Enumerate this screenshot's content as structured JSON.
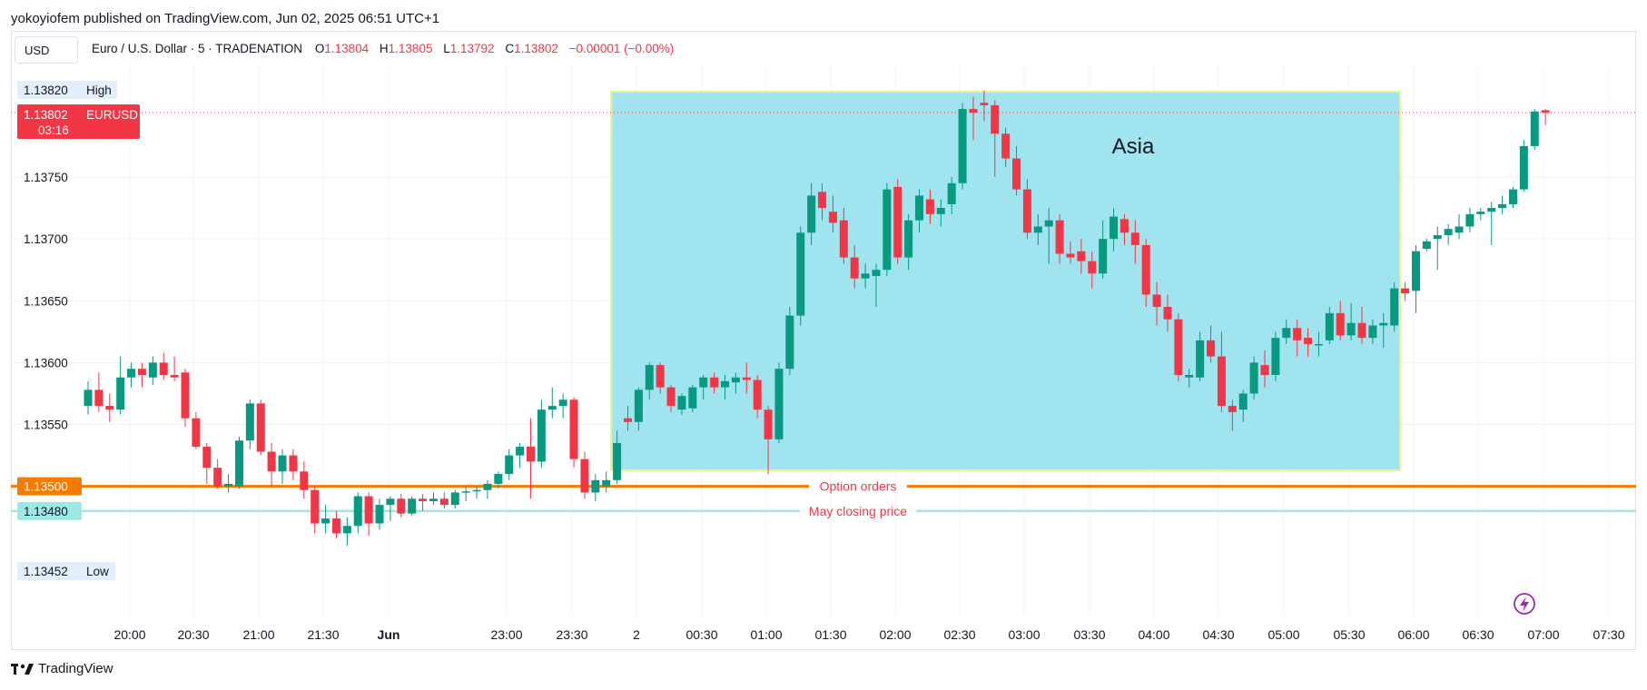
{
  "header": {
    "published": "yokoyiofem published on TradingView.com, Jun 02, 2025 06:51 UTC+1",
    "currency_button": "USD",
    "symbol": "Euro / U.S. Dollar · 5 · TRADENATION",
    "ohlc": {
      "o_label": "O",
      "o": "1.13804",
      "h_label": "H",
      "h": "1.13805",
      "l_label": "L",
      "l": "1.13792",
      "c_label": "C",
      "c": "1.13802",
      "change": "−0.00001 (−0.00%)"
    }
  },
  "footer": {
    "brand": "TradingView"
  },
  "chart_data": {
    "type": "candlestick",
    "y_range": [
      1.1341,
      1.1382
    ],
    "y_ticks": [
      "1.13750",
      "1.13700",
      "1.13650",
      "1.13600",
      "1.13550"
    ],
    "x_ticks": [
      "20:00",
      "20:30",
      "21:00",
      "21:30",
      "Jun",
      "23:00",
      "23:30",
      "2",
      "00:30",
      "01:00",
      "01:30",
      "02:00",
      "02:30",
      "03:00",
      "03:30",
      "04:00",
      "04:30",
      "05:00",
      "05:30",
      "06:00",
      "06:30",
      "07:00",
      "07:30"
    ],
    "price_labels": {
      "high": {
        "value": "1.13820",
        "tag": "High"
      },
      "low": {
        "value": "1.13452",
        "tag": "Low"
      },
      "last": {
        "value": "1.13802",
        "symbol": "EURUSD",
        "countdown": "03:16"
      }
    },
    "levels": [
      {
        "name": "Option orders",
        "value": "1.13500",
        "price": 1.135,
        "color": "#f57c00"
      },
      {
        "name": "May closing price",
        "value": "1.13480",
        "price": 1.1348,
        "color": "#9de8e4"
      }
    ],
    "annotations": [
      {
        "type": "rectangle",
        "label": "Asia",
        "start_index": 49,
        "end_index": 121,
        "price_top": 1.13819,
        "price_bottom": 1.13513,
        "fill": "#9fe4ef",
        "border": "#f0ef8f"
      }
    ],
    "colors": {
      "up": "#089981",
      "down": "#f23645",
      "grid": "#f0f3fa"
    },
    "candles": [
      [
        1.13565,
        1.13585,
        1.13558,
        1.13578
      ],
      [
        1.13578,
        1.13592,
        1.1356,
        1.13565
      ],
      [
        1.13565,
        1.13575,
        1.13552,
        1.13562
      ],
      [
        1.13562,
        1.13605,
        1.13558,
        1.13588
      ],
      [
        1.13588,
        1.136,
        1.1358,
        1.13595
      ],
      [
        1.13595,
        1.136,
        1.1358,
        1.1359
      ],
      [
        1.13588,
        1.13605,
        1.13582,
        1.136
      ],
      [
        1.136,
        1.13608,
        1.13586,
        1.1359
      ],
      [
        1.1359,
        1.13605,
        1.13585,
        1.13588
      ],
      [
        1.13592,
        1.13595,
        1.13548,
        1.13555
      ],
      [
        1.13555,
        1.1356,
        1.1353,
        1.13532
      ],
      [
        1.13532,
        1.13535,
        1.13502,
        1.13515
      ],
      [
        1.13515,
        1.13522,
        1.13498,
        1.135
      ],
      [
        1.135,
        1.1351,
        1.13495,
        1.13502
      ],
      [
        1.135,
        1.1354,
        1.13498,
        1.13537
      ],
      [
        1.13537,
        1.1357,
        1.1353,
        1.13567
      ],
      [
        1.13567,
        1.1357,
        1.13525,
        1.13528
      ],
      [
        1.13528,
        1.13535,
        1.135,
        1.13512
      ],
      [
        1.13512,
        1.1353,
        1.13502,
        1.13525
      ],
      [
        1.13525,
        1.1353,
        1.13505,
        1.13512
      ],
      [
        1.13512,
        1.1352,
        1.1349,
        1.13497
      ],
      [
        1.13497,
        1.135,
        1.13462,
        1.1347
      ],
      [
        1.1347,
        1.13485,
        1.13462,
        1.13474
      ],
      [
        1.13474,
        1.1348,
        1.13458,
        1.13462
      ],
      [
        1.13462,
        1.13475,
        1.13452,
        1.13468
      ],
      [
        1.13468,
        1.13495,
        1.13462,
        1.13492
      ],
      [
        1.13492,
        1.13495,
        1.1346,
        1.1347
      ],
      [
        1.1347,
        1.1349,
        1.13465,
        1.13485
      ],
      [
        1.13485,
        1.13492,
        1.13472,
        1.1349
      ],
      [
        1.1349,
        1.13494,
        1.13475,
        1.13478
      ],
      [
        1.13478,
        1.13492,
        1.13476,
        1.1349
      ],
      [
        1.1349,
        1.13494,
        1.1348,
        1.13488
      ],
      [
        1.13488,
        1.13495,
        1.13485,
        1.1349
      ],
      [
        1.1349,
        1.13495,
        1.13482,
        1.13485
      ],
      [
        1.13485,
        1.13497,
        1.13482,
        1.13495
      ],
      [
        1.13495,
        1.135,
        1.13488,
        1.13496
      ],
      [
        1.13496,
        1.135,
        1.1349,
        1.13497
      ],
      [
        1.13497,
        1.13505,
        1.1349,
        1.13502
      ],
      [
        1.13502,
        1.13512,
        1.13498,
        1.1351
      ],
      [
        1.1351,
        1.1353,
        1.13505,
        1.13525
      ],
      [
        1.13525,
        1.13535,
        1.13515,
        1.13532
      ],
      [
        1.13532,
        1.13555,
        1.1349,
        1.1352
      ],
      [
        1.1352,
        1.1357,
        1.13515,
        1.13562
      ],
      [
        1.13562,
        1.1358,
        1.13555,
        1.13565
      ],
      [
        1.13565,
        1.13575,
        1.13555,
        1.1357
      ],
      [
        1.1357,
        1.13572,
        1.13515,
        1.13522
      ],
      [
        1.13522,
        1.13528,
        1.1349,
        1.13495
      ],
      [
        1.13495,
        1.1351,
        1.13488,
        1.13505
      ],
      [
        1.135,
        1.13512,
        1.13495,
        1.13505
      ],
      [
        1.13505,
        1.13545,
        1.13502,
        1.13535
      ],
      [
        1.13555,
        1.13565,
        1.13545,
        1.13552
      ],
      [
        1.13552,
        1.1358,
        1.13545,
        1.13578
      ],
      [
        1.13578,
        1.136,
        1.1357,
        1.13598
      ],
      [
        1.13598,
        1.136,
        1.13575,
        1.1358
      ],
      [
        1.1358,
        1.13582,
        1.1356,
        1.13565
      ],
      [
        1.13562,
        1.13575,
        1.13558,
        1.13573
      ],
      [
        1.13563,
        1.13582,
        1.1356,
        1.1358
      ],
      [
        1.1358,
        1.1359,
        1.1357,
        1.13588
      ],
      [
        1.13588,
        1.13592,
        1.13575,
        1.1358
      ],
      [
        1.1358,
        1.1359,
        1.1357,
        1.13585
      ],
      [
        1.13584,
        1.13592,
        1.13575,
        1.13588
      ],
      [
        1.13588,
        1.136,
        1.13575,
        1.13586
      ],
      [
        1.13586,
        1.1359,
        1.13555,
        1.13562
      ],
      [
        1.13562,
        1.13565,
        1.1351,
        1.13538
      ],
      [
        1.13538,
        1.136,
        1.13535,
        1.13595
      ],
      [
        1.13595,
        1.13645,
        1.1359,
        1.13638
      ],
      [
        1.13638,
        1.1371,
        1.1363,
        1.13705
      ],
      [
        1.13705,
        1.13745,
        1.13695,
        1.13735
      ],
      [
        1.13738,
        1.13745,
        1.13715,
        1.13725
      ],
      [
        1.13722,
        1.13735,
        1.13705,
        1.13713
      ],
      [
        1.13715,
        1.13725,
        1.1368,
        1.13685
      ],
      [
        1.13685,
        1.13695,
        1.1366,
        1.13668
      ],
      [
        1.13668,
        1.1368,
        1.1366,
        1.13672
      ],
      [
        1.1367,
        1.1368,
        1.13645,
        1.13675
      ],
      [
        1.13675,
        1.13745,
        1.1367,
        1.1374
      ],
      [
        1.13742,
        1.13748,
        1.1368,
        1.13685
      ],
      [
        1.13685,
        1.1372,
        1.13675,
        1.13715
      ],
      [
        1.13715,
        1.1374,
        1.13705,
        1.13735
      ],
      [
        1.13732,
        1.1374,
        1.13712,
        1.1372
      ],
      [
        1.1372,
        1.13732,
        1.1371,
        1.13725
      ],
      [
        1.13728,
        1.1375,
        1.1372,
        1.13745
      ],
      [
        1.13745,
        1.1381,
        1.1374,
        1.13805
      ],
      [
        1.13805,
        1.13815,
        1.1378,
        1.13802
      ],
      [
        1.1381,
        1.1382,
        1.13795,
        1.13808
      ],
      [
        1.13808,
        1.13812,
        1.1375,
        1.13785
      ],
      [
        1.13785,
        1.1379,
        1.13758,
        1.13765
      ],
      [
        1.13765,
        1.13775,
        1.13735,
        1.1374
      ],
      [
        1.1374,
        1.13748,
        1.137,
        1.13705
      ],
      [
        1.13705,
        1.1372,
        1.13695,
        1.1371
      ],
      [
        1.1371,
        1.13725,
        1.1368,
        1.13715
      ],
      [
        1.13715,
        1.1372,
        1.1368,
        1.13688
      ],
      [
        1.13688,
        1.13698,
        1.1368,
        1.13685
      ],
      [
        1.1369,
        1.137,
        1.13672,
        1.13682
      ],
      [
        1.13682,
        1.1369,
        1.1366,
        1.13672
      ],
      [
        1.13672,
        1.13715,
        1.13668,
        1.137
      ],
      [
        1.137,
        1.13725,
        1.1369,
        1.13718
      ],
      [
        1.13716,
        1.1372,
        1.13695,
        1.13705
      ],
      [
        1.13705,
        1.13715,
        1.1368,
        1.13695
      ],
      [
        1.13695,
        1.137,
        1.13645,
        1.13655
      ],
      [
        1.13655,
        1.13665,
        1.1363,
        1.13645
      ],
      [
        1.13645,
        1.13655,
        1.13625,
        1.13635
      ],
      [
        1.13635,
        1.1364,
        1.13585,
        1.1359
      ],
      [
        1.13588,
        1.13595,
        1.1358,
        1.1359
      ],
      [
        1.13588,
        1.13625,
        1.13585,
        1.13618
      ],
      [
        1.13618,
        1.1363,
        1.136,
        1.13605
      ],
      [
        1.13605,
        1.13625,
        1.1356,
        1.13565
      ],
      [
        1.13565,
        1.1357,
        1.13545,
        1.1356
      ],
      [
        1.13562,
        1.13578,
        1.13552,
        1.13575
      ],
      [
        1.13575,
        1.13605,
        1.1357,
        1.136
      ],
      [
        1.13598,
        1.1361,
        1.1358,
        1.1359
      ],
      [
        1.1359,
        1.13625,
        1.13585,
        1.1362
      ],
      [
        1.1362,
        1.13635,
        1.13615,
        1.13628
      ],
      [
        1.13628,
        1.13635,
        1.13605,
        1.13618
      ],
      [
        1.1362,
        1.13628,
        1.13605,
        1.13615
      ],
      [
        1.13615,
        1.13625,
        1.13605,
        1.13615
      ],
      [
        1.13618,
        1.13645,
        1.13615,
        1.1364
      ],
      [
        1.1364,
        1.1365,
        1.13618,
        1.13622
      ],
      [
        1.13622,
        1.13648,
        1.13618,
        1.13632
      ],
      [
        1.13632,
        1.13645,
        1.13615,
        1.1362
      ],
      [
        1.1362,
        1.13635,
        1.13615,
        1.1363
      ],
      [
        1.1363,
        1.1364,
        1.13612,
        1.13632
      ],
      [
        1.1363,
        1.13665,
        1.13625,
        1.1366
      ],
      [
        1.1366,
        1.13665,
        1.1365,
        1.13656
      ],
      [
        1.13658,
        1.13695,
        1.1364,
        1.1369
      ],
      [
        1.13692,
        1.137,
        1.1369,
        1.13698
      ],
      [
        1.137,
        1.1371,
        1.13675,
        1.13703
      ],
      [
        1.13703,
        1.13712,
        1.13695,
        1.13708
      ],
      [
        1.13705,
        1.1372,
        1.137,
        1.1371
      ],
      [
        1.1371,
        1.13725,
        1.13705,
        1.1372
      ],
      [
        1.1372,
        1.13725,
        1.13715,
        1.13722
      ],
      [
        1.13722,
        1.1373,
        1.13695,
        1.13725
      ],
      [
        1.13725,
        1.13735,
        1.1372,
        1.13728
      ],
      [
        1.13728,
        1.13742,
        1.13725,
        1.1374
      ],
      [
        1.1374,
        1.1378,
        1.13738,
        1.13775
      ],
      [
        1.13775,
        1.13805,
        1.13772,
        1.13803
      ],
      [
        1.13804,
        1.13805,
        1.13792,
        1.13802
      ]
    ]
  }
}
